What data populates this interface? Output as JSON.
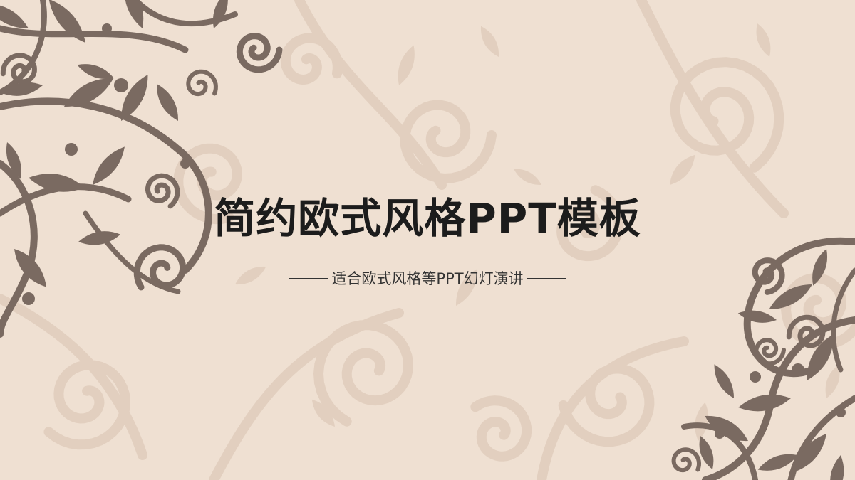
{
  "slide": {
    "title": "简约欧式风格PPT模板",
    "subtitle": "适合欧式风格等PPT幻灯演讲"
  },
  "colors": {
    "background": "#efe0d2",
    "ornament_dark": "#7a6a61",
    "ornament_light": "#e2cfbf",
    "text": "#1c1c1c",
    "subtitle_text": "#333333"
  },
  "decorations": {
    "top_left": "floral-swirl-ornament",
    "bottom_right": "floral-swirl-ornament",
    "background": "damask-swirl-pattern"
  }
}
